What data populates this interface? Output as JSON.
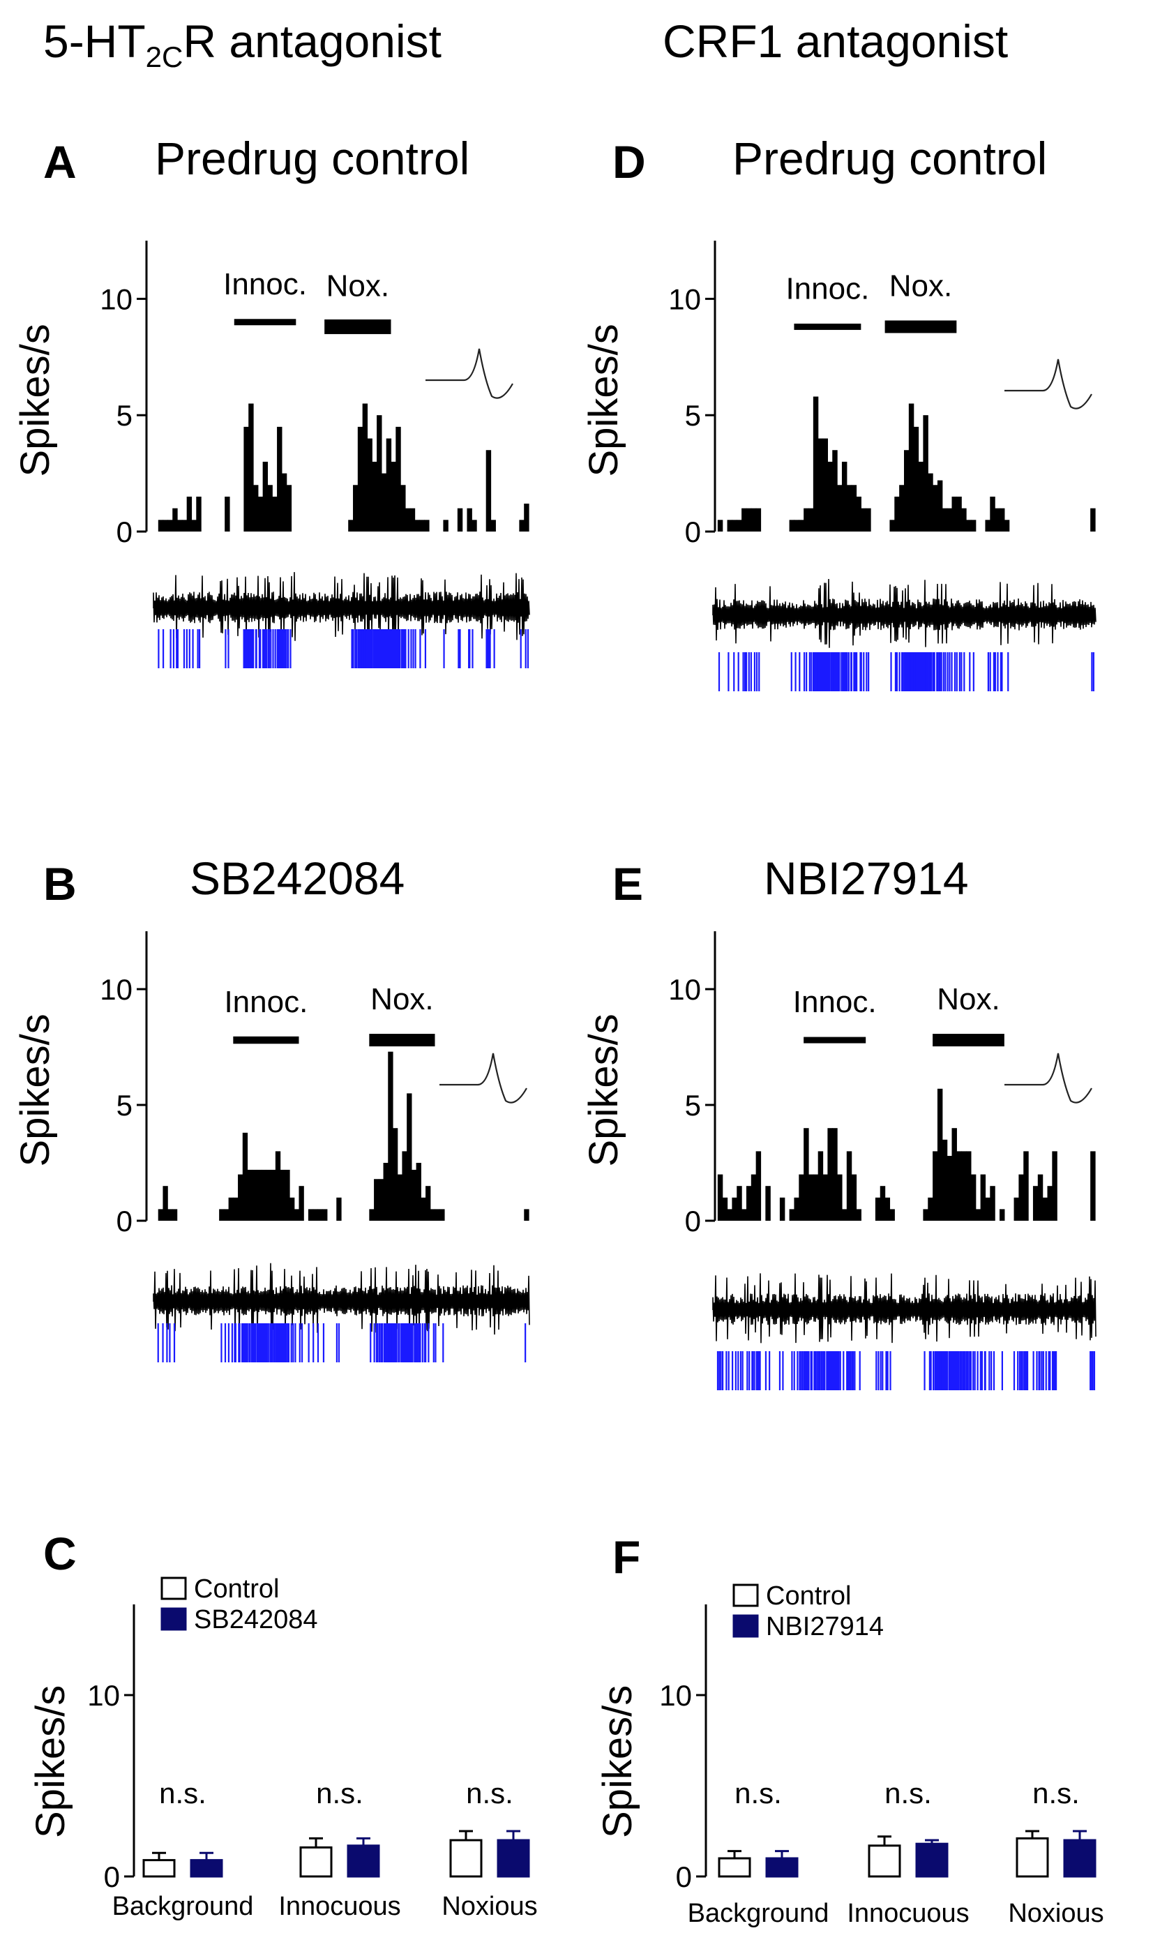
{
  "columns": {
    "left": {
      "title": "5-HT",
      "sub": "2C",
      "suffix": "R antagonist"
    },
    "right": {
      "title": "CRF1 antagonist"
    }
  },
  "colors": {
    "trace": "#000000",
    "raster": "#1a1aff",
    "drug_bar": "#0a0a6e",
    "control_bar": "#ffffff"
  },
  "waveform_icon": "spike-waveform-icon",
  "chart_data": [
    {
      "id": "A",
      "type": "bar",
      "letter": "A",
      "title": "Predrug control",
      "ylabel": "Spikes/s",
      "ylim": [
        0,
        12.5
      ],
      "yticks": [
        0,
        5,
        10
      ],
      "stimuli": [
        {
          "label": "Innoc.",
          "start": 17,
          "end": 30,
          "height": 9,
          "thickness": 0.3
        },
        {
          "label": "Nox.",
          "start": 36,
          "end": 50,
          "height": 8.8,
          "thickness": 0.7
        }
      ],
      "values": [
        0,
        0.5,
        0.5,
        0.5,
        1,
        0.5,
        0.5,
        1.5,
        0.5,
        1.5,
        0,
        0,
        0,
        0,
        0,
        1.5,
        0,
        0,
        0,
        4.5,
        5.5,
        2,
        1.5,
        3,
        2,
        1.5,
        4.5,
        2.5,
        2,
        0,
        0,
        0,
        0,
        0,
        0,
        0,
        0,
        0,
        0,
        0,
        0,
        0.5,
        2,
        4.5,
        5.5,
        4,
        3,
        5,
        2.5,
        4,
        3,
        4.5,
        2,
        1,
        1,
        0.5,
        0.5,
        0.5,
        0,
        0,
        0,
        0.5,
        0,
        0,
        1,
        0,
        1,
        0.5,
        0,
        0,
        3.5,
        0.5,
        0,
        0,
        0,
        0,
        0,
        0.5,
        1.2
      ]
    },
    {
      "id": "B",
      "type": "bar",
      "letter": "B",
      "title": "SB242084",
      "ylabel": "Spikes/s",
      "ylim": [
        0,
        12.5
      ],
      "yticks": [
        0,
        5,
        10
      ],
      "stimuli": [
        {
          "label": "Innoc.",
          "start": 17,
          "end": 31,
          "height": 7.8,
          "thickness": 0.35
        },
        {
          "label": "Nox.",
          "start": 46,
          "end": 60,
          "height": 7.8,
          "thickness": 0.6
        }
      ],
      "values": [
        0,
        0.5,
        1.5,
        0.5,
        0.5,
        0,
        0,
        0,
        0,
        0,
        0,
        0,
        0,
        0,
        0.5,
        0.5,
        1,
        1,
        2,
        3.8,
        2.2,
        2.2,
        2.2,
        2.2,
        2.2,
        2.2,
        3,
        2.2,
        2.2,
        1,
        0.5,
        1.5,
        0,
        0.5,
        0.5,
        0.5,
        0.5,
        0,
        0,
        1,
        0,
        0,
        0,
        0,
        0,
        0,
        0.5,
        1.8,
        1.8,
        2.5,
        7.3,
        4,
        2,
        3,
        5.5,
        2.2,
        2.5,
        1,
        1.5,
        0.5,
        0.5,
        0.5,
        0,
        0,
        0,
        0,
        0,
        0,
        0,
        0,
        0,
        0,
        0,
        0,
        0,
        0,
        0,
        0,
        0,
        0.5
      ]
    },
    {
      "id": "D",
      "type": "bar",
      "letter": "D",
      "title": "Predrug control",
      "ylabel": "Spikes/s",
      "ylim": [
        0,
        12.5
      ],
      "yticks": [
        0,
        5,
        10
      ],
      "stimuli": [
        {
          "label": "Innoc.",
          "start": 17,
          "end": 31,
          "height": 8.8,
          "thickness": 0.3
        },
        {
          "label": "Nox.",
          "start": 36,
          "end": 51,
          "height": 8.8,
          "thickness": 0.6
        }
      ],
      "values": [
        0,
        0.5,
        0,
        0.5,
        0.5,
        0.5,
        1,
        1,
        1,
        1,
        0,
        0,
        0,
        0,
        0,
        0,
        0.5,
        0.5,
        0.5,
        1,
        1,
        5.8,
        4,
        4,
        3,
        3.5,
        2,
        3,
        2,
        2,
        1.5,
        1,
        1,
        0,
        0,
        0,
        0,
        0.5,
        1.5,
        2,
        3.5,
        5.5,
        4.5,
        3,
        5,
        2.5,
        2,
        2.2,
        1,
        1,
        1.5,
        1.5,
        1,
        0.5,
        0.5,
        0,
        0,
        0.5,
        1.5,
        1,
        1,
        0.5,
        0,
        0,
        0,
        0,
        0,
        0,
        0,
        0,
        0,
        0,
        0,
        0,
        0,
        0,
        0,
        0,
        0,
        1
      ]
    },
    {
      "id": "E",
      "type": "bar",
      "letter": "E",
      "title": "NBI27914",
      "ylabel": "Spikes/s",
      "ylim": [
        0,
        12.5
      ],
      "yticks": [
        0,
        5,
        10
      ],
      "stimuli": [
        {
          "label": "Innoc.",
          "start": 19,
          "end": 32,
          "height": 7.8,
          "thickness": 0.3
        },
        {
          "label": "Nox.",
          "start": 46,
          "end": 61,
          "height": 7.8,
          "thickness": 0.6
        }
      ],
      "values": [
        0,
        2,
        1,
        0.5,
        1,
        1.5,
        0.5,
        1.5,
        2,
        3,
        0,
        1.5,
        0,
        0,
        1,
        0,
        0.5,
        1,
        2,
        4,
        2,
        2,
        3,
        2,
        4,
        4,
        2,
        0.5,
        3,
        2,
        0.5,
        0,
        0,
        0,
        1,
        1.5,
        1,
        0.5,
        0,
        0,
        0,
        0,
        0,
        0,
        0.5,
        1,
        3,
        5.7,
        3.5,
        2.8,
        4,
        3,
        3,
        3,
        2,
        0.5,
        2,
        1,
        1.5,
        0,
        0.5,
        0,
        0,
        1,
        2,
        3,
        0,
        1.5,
        2,
        1,
        1.5,
        3,
        0,
        0,
        0,
        0,
        0,
        0,
        0,
        3
      ]
    },
    {
      "id": "C",
      "type": "bar",
      "letter": "C",
      "ylabel": "Spikes/s",
      "ylim": [
        0,
        15
      ],
      "yticks": [
        0,
        10
      ],
      "categories": [
        "Background",
        "Innocuous",
        "Noxious"
      ],
      "series": [
        {
          "name": "Control",
          "values": [
            0.9,
            1.6,
            2.0
          ],
          "errors": [
            0.4,
            0.5,
            0.5
          ]
        },
        {
          "name": "SB242084",
          "values": [
            0.9,
            1.7,
            2.0
          ],
          "errors": [
            0.4,
            0.4,
            0.5
          ]
        }
      ],
      "annotations": [
        "n.s.",
        "n.s.",
        "n.s."
      ]
    },
    {
      "id": "F",
      "type": "bar",
      "letter": "F",
      "ylabel": "Spikes/s",
      "ylim": [
        0,
        15
      ],
      "yticks": [
        0,
        10
      ],
      "categories": [
        "Background",
        "Innocuous",
        "Noxious"
      ],
      "series": [
        {
          "name": "Control",
          "values": [
            1.0,
            1.7,
            2.1
          ],
          "errors": [
            0.4,
            0.5,
            0.4
          ]
        },
        {
          "name": "NBI27914",
          "values": [
            1.0,
            1.8,
            2.0
          ],
          "errors": [
            0.4,
            0.2,
            0.5
          ]
        }
      ],
      "annotations": [
        "n.s.",
        "n.s.",
        "n.s."
      ]
    }
  ]
}
